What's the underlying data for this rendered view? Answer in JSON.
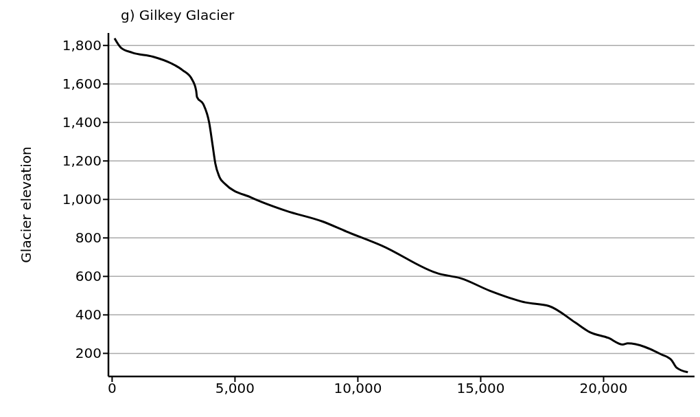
{
  "chart_data": {
    "type": "line",
    "title": "g) Gilkey Glacier",
    "ylabel": "Glacier elevation",
    "x": [
      100,
      355,
      820,
      1660,
      2410,
      2875,
      3250,
      3420,
      3455,
      3715,
      3950,
      4090,
      4200,
      4370,
      4600,
      5680,
      7080,
      8570,
      9540,
      10990,
      13290,
      14190,
      15360,
      16810,
      17780,
      18850,
      19430,
      20200,
      20780,
      20980,
      22340,
      22770,
      22960,
      23430
    ],
    "series": [
      {
        "color": "#000000",
        "values": [
          1837,
          1789,
          1763,
          1742,
          1707,
          1671,
          1624,
          1565,
          1532,
          1494,
          1399,
          1281,
          1187,
          1116,
          1080,
          1009,
          941,
          885,
          833,
          759,
          614,
          590,
          526,
          465,
          446,
          360,
          311,
          280,
          246,
          252,
          195,
          164,
          127,
          102
        ]
      }
    ],
    "xlim": [
      -150,
      23700
    ],
    "ylim": [
      80,
      1865
    ],
    "xticks": [
      {
        "value": 0,
        "label": "0"
      },
      {
        "value": 5000,
        "label": "5,000"
      },
      {
        "value": 10000,
        "label": "10,000"
      },
      {
        "value": 15000,
        "label": "15,000"
      },
      {
        "value": 20000,
        "label": "20,000"
      }
    ],
    "yticks": [
      {
        "value": 200,
        "label": "200"
      },
      {
        "value": 400,
        "label": "400"
      },
      {
        "value": 600,
        "label": "600"
      },
      {
        "value": 800,
        "label": "800"
      },
      {
        "value": 1000,
        "label": "1,000"
      },
      {
        "value": 1200,
        "label": "1,200"
      },
      {
        "value": 1400,
        "label": "1,400"
      },
      {
        "value": 1600,
        "label": "1,600"
      },
      {
        "value": 1800,
        "label": "1,800"
      }
    ],
    "grid": "y",
    "legend": false,
    "marker": "none",
    "line_style": "solid"
  }
}
